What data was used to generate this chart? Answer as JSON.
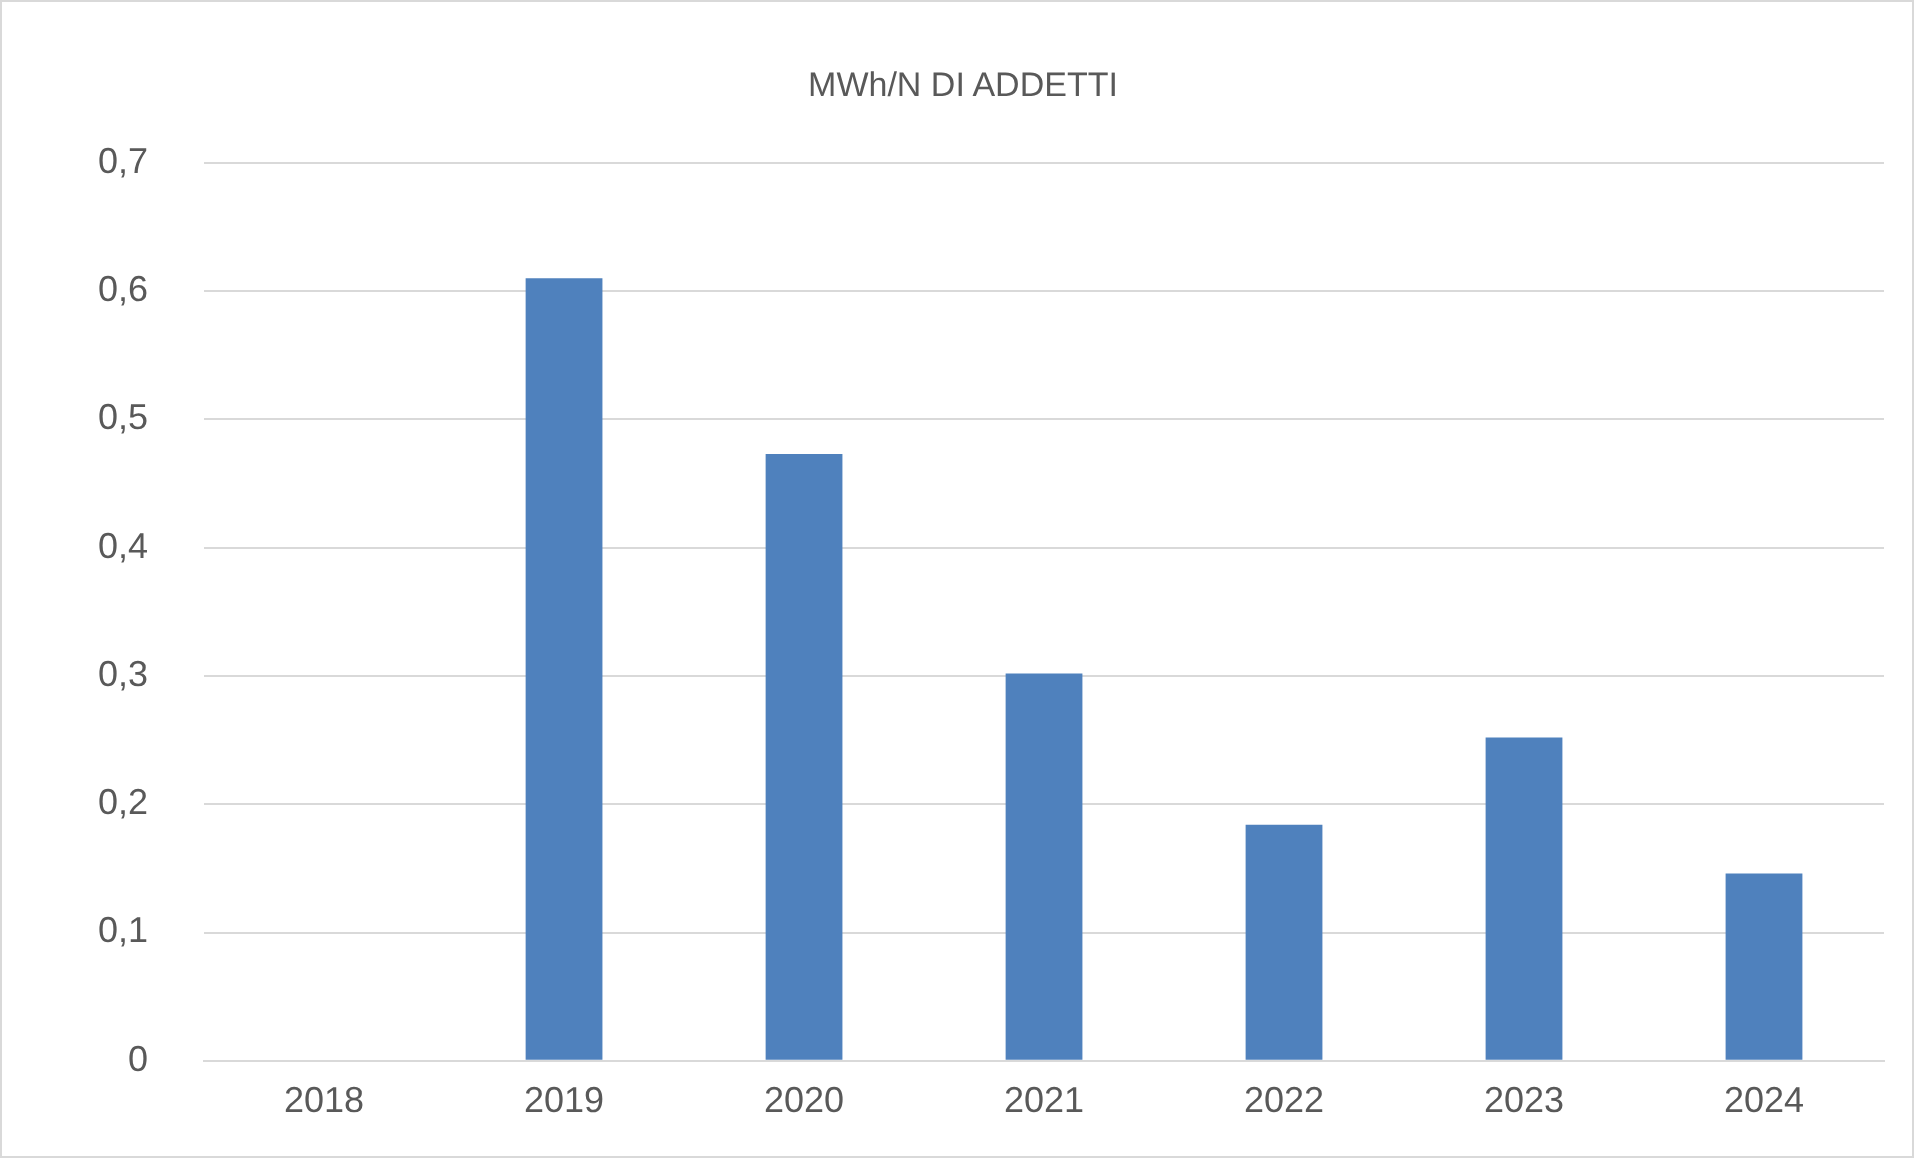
{
  "chart_data": {
    "type": "bar",
    "title": "MWh/N DI ADDETTI",
    "categories": [
      "2018",
      "2019",
      "2020",
      "2021",
      "2022",
      "2023",
      "2024"
    ],
    "values": [
      0,
      0.61,
      0.473,
      0.302,
      0.184,
      0.252,
      0.146
    ],
    "color": "#4f81bd",
    "ylim": [
      0,
      0.7
    ],
    "yticks": [
      {
        "value": 0,
        "label": "0"
      },
      {
        "value": 0.1,
        "label": "0,1"
      },
      {
        "value": 0.2,
        "label": "0,2"
      },
      {
        "value": 0.3,
        "label": "0,3"
      },
      {
        "value": 0.4,
        "label": "0,4"
      },
      {
        "value": 0.5,
        "label": "0,5"
      },
      {
        "value": 0.6,
        "label": "0,6"
      },
      {
        "value": 0.7,
        "label": "0,7"
      }
    ],
    "grid": "y",
    "legend": false
  }
}
